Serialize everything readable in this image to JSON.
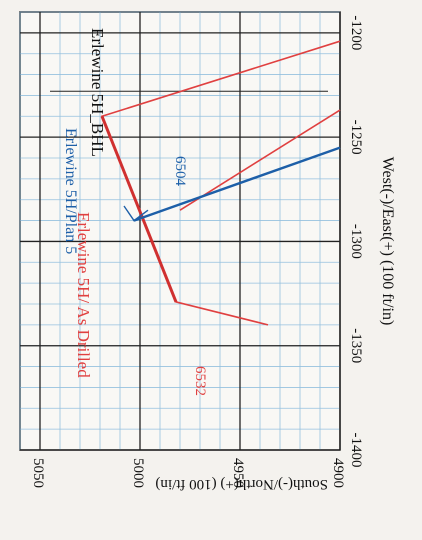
{
  "chart_data": {
    "type": "line",
    "xlabel": "West(-)/East(+) (100 ft/in)",
    "ylabel": "South(-)/North(+) (100 ft/in)",
    "xlim": [
      -1400,
      -1190
    ],
    "ylim": [
      4900,
      5060
    ],
    "x_ticks": [
      "-1200",
      "-1250",
      "-1300",
      "-1350",
      "-1400"
    ],
    "y_ticks": [
      "5050",
      "5000",
      "4950",
      "4900"
    ],
    "series": [
      {
        "name": "Erlewine 5H/ As Drilled",
        "color": "#e04040",
        "points": [
          [
            -1204,
            4900
          ],
          [
            -1240,
            5019
          ],
          [
            -1329,
            4982
          ],
          [
            -1340,
            4936
          ]
        ]
      },
      {
        "name": "Erlewine 5H/Plan 5",
        "color": "#1d5fa8",
        "points": [
          [
            -1255,
            4900
          ],
          [
            -1290,
            5003
          ]
        ]
      }
    ],
    "extra_lines": [
      {
        "name": "Erlewine 5H_BHL",
        "points": [
          [
            -1228,
            5045
          ],
          [
            -1228,
            4906
          ]
        ]
      }
    ],
    "annotations": [
      {
        "text": "Erlewine 5H_BHL",
        "color": "#111111"
      },
      {
        "text": "Erlewine 5H/Plan 5",
        "color": "#1d5fa8"
      },
      {
        "text": "Erlewine 5H/ As Drilled",
        "color": "#e04040"
      },
      {
        "text": "6504",
        "color": "#1d5fa8"
      },
      {
        "text": "6532",
        "color": "#e04040"
      }
    ],
    "grid": true
  }
}
